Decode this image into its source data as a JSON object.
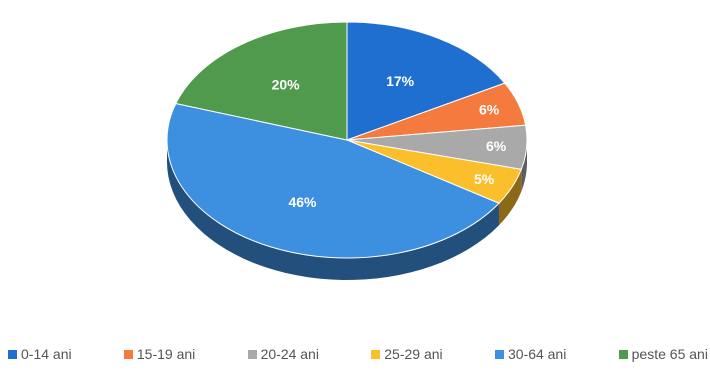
{
  "chart_data": {
    "type": "pie",
    "title": "",
    "slices": [
      {
        "label": "0-14 ani",
        "value": 17,
        "value_label": "17%",
        "color": "#1f6fd1"
      },
      {
        "label": "15-19 ani",
        "value": 6,
        "value_label": "6%",
        "color": "#f47a3d"
      },
      {
        "label": "20-24 ani",
        "value": 6,
        "value_label": "6%",
        "color": "#a9a9a9"
      },
      {
        "label": "25-29 ani",
        "value": 5,
        "value_label": "5%",
        "color": "#fbbf2c"
      },
      {
        "label": "30-64 ani",
        "value": 46,
        "value_label": "46%",
        "color": "#3d8fe0"
      },
      {
        "label": "peste 65 ani",
        "value": 20,
        "value_label": "20%",
        "color": "#4f9a4c"
      }
    ],
    "legend_position": "bottom",
    "style": "3d-tilted"
  }
}
